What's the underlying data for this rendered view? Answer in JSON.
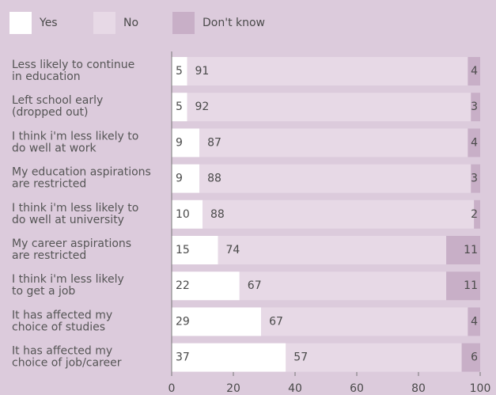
{
  "chart_data": {
    "type": "stacked_barh",
    "categories": [
      [
        "Less likely to continue",
        "in education"
      ],
      [
        "Left school early",
        "(dropped out)"
      ],
      [
        "I think i'm less likely to",
        "do well at work"
      ],
      [
        "My education aspirations",
        "are restricted"
      ],
      [
        "I think i'm less likely to",
        "do well at university"
      ],
      [
        "My career aspirations",
        "are restricted"
      ],
      [
        "I think i'm less likely",
        "to get a job"
      ],
      [
        "It has affected my",
        "choice of studies"
      ],
      [
        "It has affected my",
        "choice of job/career"
      ]
    ],
    "series": [
      {
        "name": "Yes",
        "color": "#ffffff",
        "values": [
          5,
          5,
          9,
          9,
          10,
          15,
          22,
          29,
          37
        ]
      },
      {
        "name": "No",
        "color": "#e7d9e6",
        "values": [
          91,
          92,
          87,
          88,
          88,
          74,
          67,
          67,
          57
        ]
      },
      {
        "name": "Don't know",
        "color": "#c8afc7",
        "values": [
          4,
          3,
          4,
          3,
          2,
          11,
          11,
          4,
          6
        ]
      }
    ],
    "xlim": [
      0,
      100
    ],
    "xticks": [
      0,
      20,
      40,
      60,
      80,
      100
    ]
  }
}
